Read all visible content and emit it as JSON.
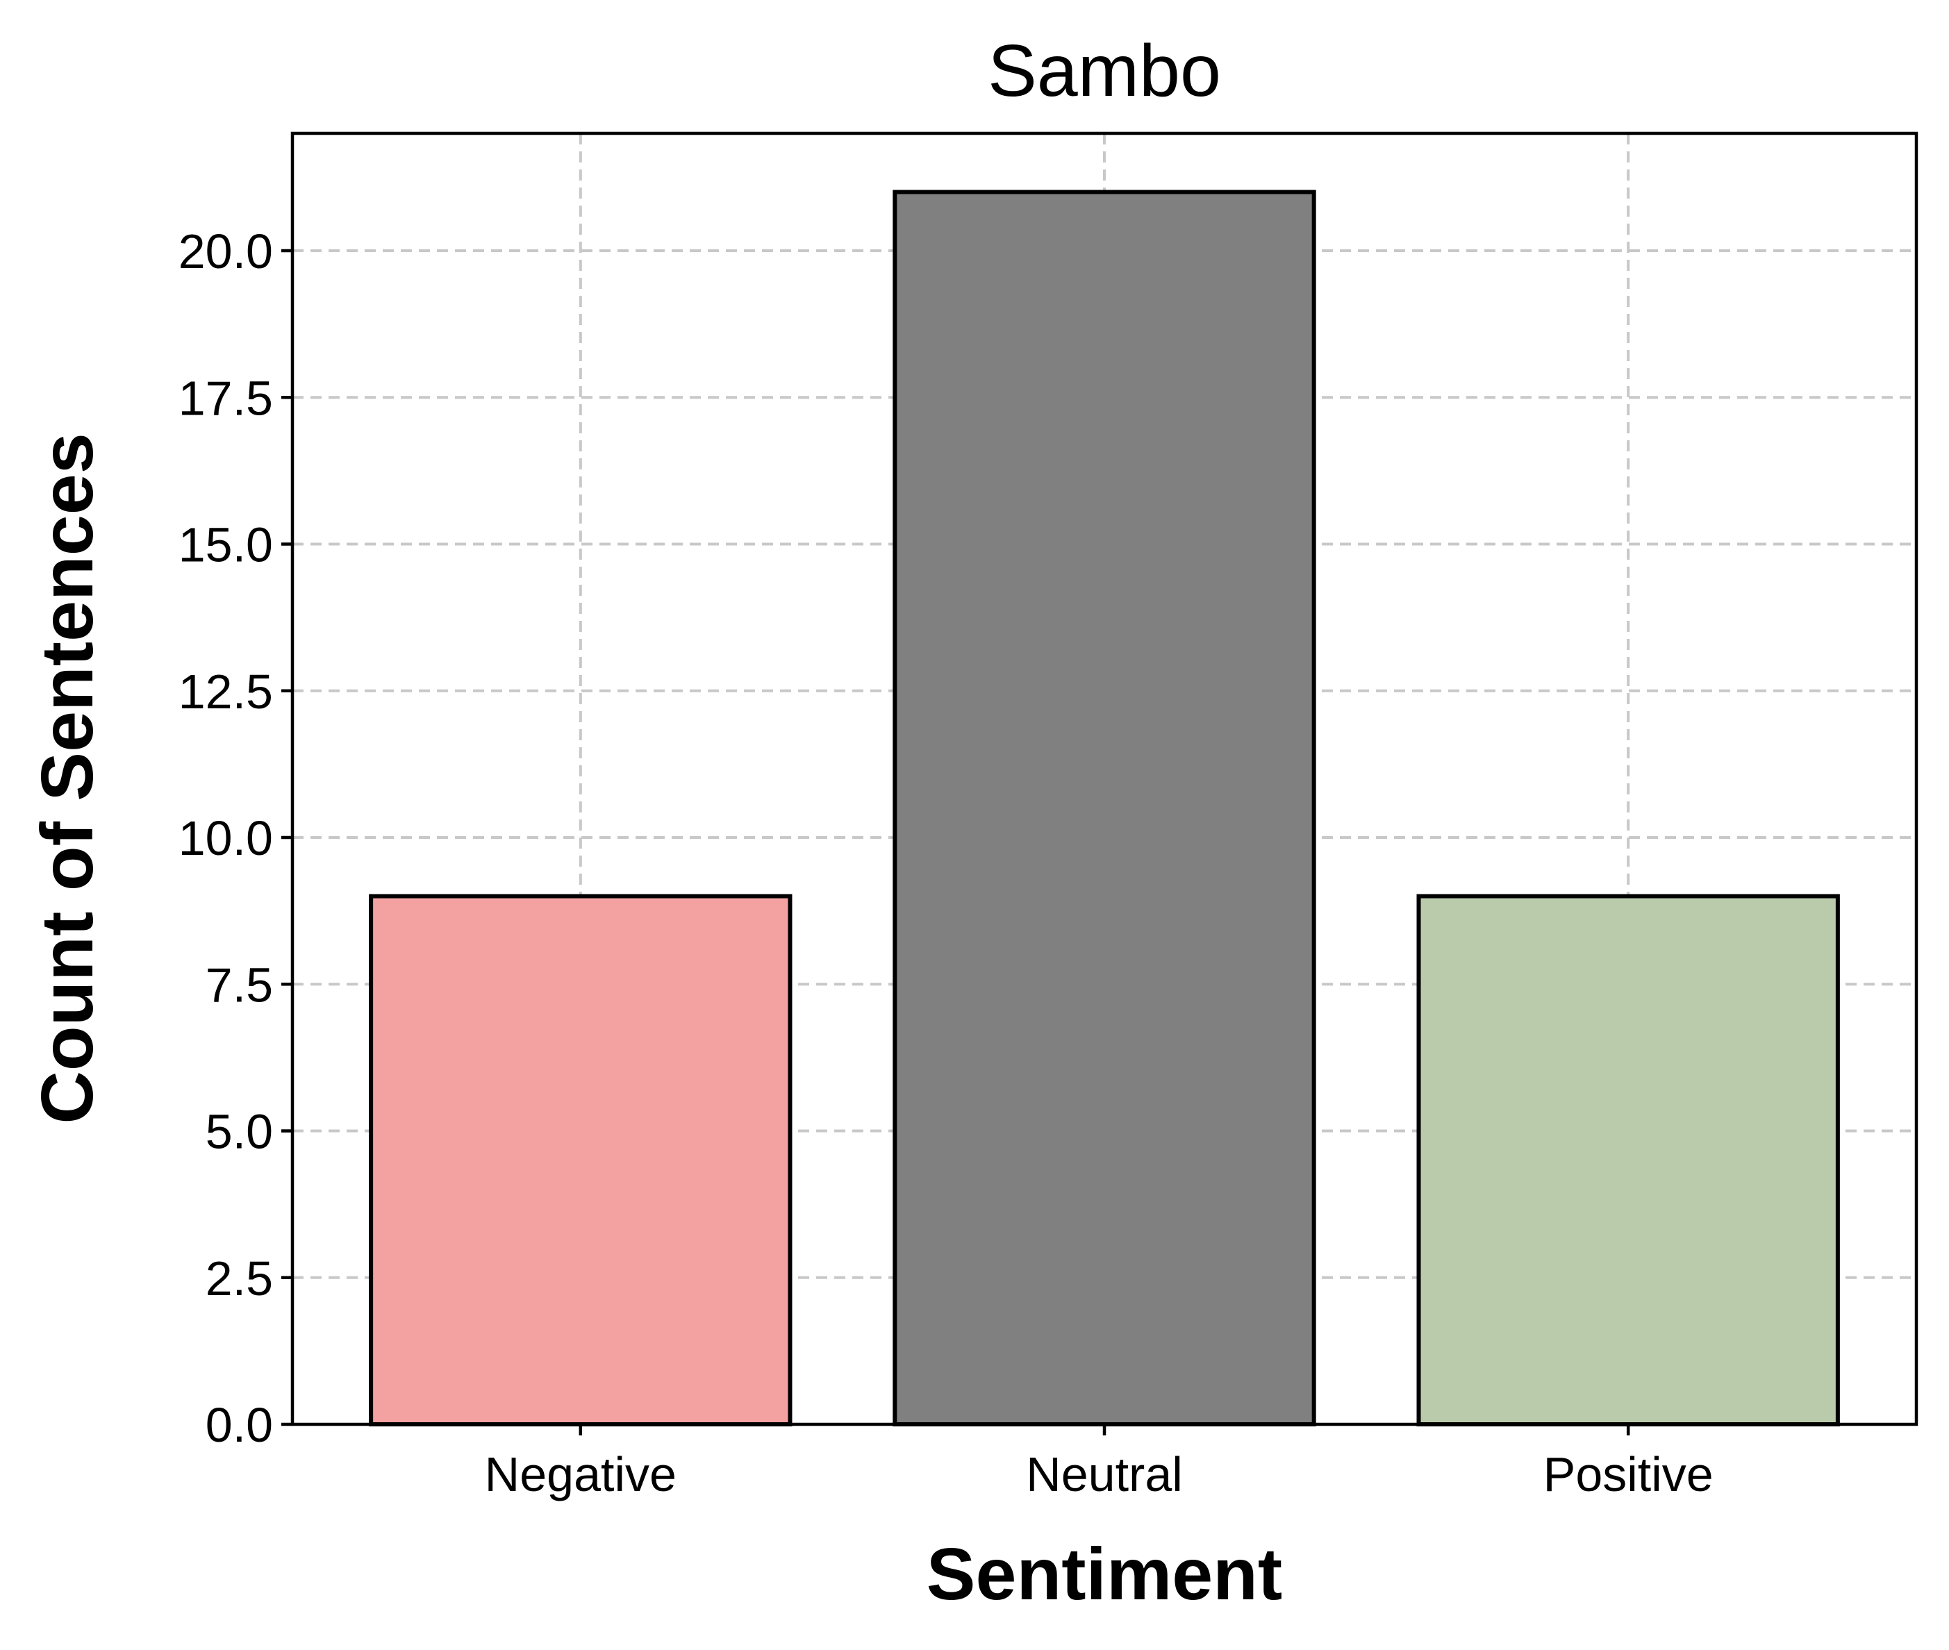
{
  "chart_data": {
    "type": "bar",
    "title": "Sambo",
    "xlabel": "Sentiment",
    "ylabel": "Count of Sentences",
    "categories": [
      "Negative",
      "Neutral",
      "Positive"
    ],
    "values": [
      9,
      21,
      9
    ],
    "colors": [
      "#f4a1a1",
      "#808080",
      "#b9cbaa"
    ],
    "ylim": [
      0,
      22
    ],
    "yticks": [
      "0.0",
      "2.5",
      "5.0",
      "7.5",
      "10.0",
      "12.5",
      "15.0",
      "17.5",
      "20.0"
    ],
    "grid": true,
    "grid_style": "dashed",
    "legend": "none"
  }
}
